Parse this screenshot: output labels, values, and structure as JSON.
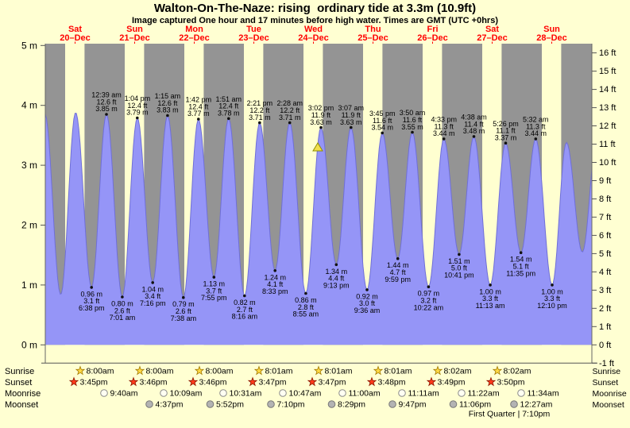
{
  "title": "Walton-On-The-Naze: rising  ordinary tide at 3.3m (10.9ft)",
  "subtitle": "Image captured One hour and 17 minutes before high water. Times are GMT (UTC +0hrs)",
  "colors": {
    "page_bg": "#ffffd2",
    "day_band": "#ffffd0",
    "night_band": "#949494",
    "tide_fill": "#9595f7",
    "tide_edge": "#6f6fd8",
    "day_label": "#ff0000",
    "text": "#000000",
    "marker_fill": "#f2df4e",
    "marker_edge": "#8f8f00",
    "sunrise_star": "#ffd945",
    "sunset_star": "#ff3a1a",
    "moonrise_fill": "#fffff2",
    "moonset_fill": "#b3b3b3"
  },
  "chart_data": {
    "type": "area",
    "title": "Walton-On-The-Naze: rising  ordinary tide at 3.3m (10.9ft)",
    "y_range_m": [
      -0.3,
      5
    ],
    "x_days": [
      {
        "name": "Sat",
        "date": "20–Dec"
      },
      {
        "name": "Sun",
        "date": "21–Dec"
      },
      {
        "name": "Mon",
        "date": "22–Dec"
      },
      {
        "name": "Tue",
        "date": "23–Dec"
      },
      {
        "name": "Wed",
        "date": "24–Dec"
      },
      {
        "name": "Thu",
        "date": "25–Dec"
      },
      {
        "name": "Fri",
        "date": "26–Dec"
      },
      {
        "name": "Sat",
        "date": "27–Dec"
      },
      {
        "name": "Sun",
        "date": "28–Dec"
      }
    ],
    "y_left_ticks": [
      "5 m",
      "4 m",
      "3 m",
      "2 m",
      "1 m",
      "0 m"
    ],
    "y_right_ticks": [
      "16 ft",
      "15 ft",
      "14 ft",
      "13 ft",
      "12 ft",
      "11 ft",
      "10 ft",
      "9 ft",
      "8 ft",
      "7 ft",
      "6 ft",
      "5 ft",
      "4 ft",
      "3 ft",
      "2 ft",
      "1 ft",
      "0 ft",
      "-1 ft"
    ],
    "high_tides": [
      {
        "time": "12:39 am",
        "ft": "12.6 ft",
        "m": "3.85 m",
        "height_m": 3.85,
        "t_hours": 24.65
      },
      {
        "time": "1:04 pm",
        "ft": "12.4 ft",
        "m": "3.79 m",
        "height_m": 3.79,
        "t_hours": 37.07
      },
      {
        "time": "1:15 am",
        "ft": "12.6 ft",
        "m": "3.83 m",
        "height_m": 3.83,
        "t_hours": 49.25
      },
      {
        "time": "1:42 pm",
        "ft": "12.4 ft",
        "m": "3.77 m",
        "height_m": 3.77,
        "t_hours": 61.7
      },
      {
        "time": "1:51 am",
        "ft": "12.4 ft",
        "m": "3.78 m",
        "height_m": 3.78,
        "t_hours": 73.85
      },
      {
        "time": "2:21 pm",
        "ft": "12.2 ft",
        "m": "3.71 m",
        "height_m": 3.71,
        "t_hours": 86.35
      },
      {
        "time": "2:28 am",
        "ft": "12.2 ft",
        "m": "3.71 m",
        "height_m": 3.71,
        "t_hours": 98.47
      },
      {
        "time": "3:02 pm",
        "ft": "11.9 ft",
        "m": "3.63 m",
        "height_m": 3.63,
        "t_hours": 111.03
      },
      {
        "time": "3:07 am",
        "ft": "11.9 ft",
        "m": "3.63 m",
        "height_m": 3.63,
        "t_hours": 123.12
      },
      {
        "time": "3:45 pm",
        "ft": "11.6 ft",
        "m": "3.54 m",
        "height_m": 3.54,
        "t_hours": 135.75
      },
      {
        "time": "3:50 am",
        "ft": "11.6 ft",
        "m": "3.55 m",
        "height_m": 3.55,
        "t_hours": 147.83
      },
      {
        "time": "4:33 pm",
        "ft": "11.3 ft",
        "m": "3.44 m",
        "height_m": 3.44,
        "t_hours": 160.55
      },
      {
        "time": "4:38 am",
        "ft": "11.4 ft",
        "m": "3.48 m",
        "height_m": 3.48,
        "t_hours": 172.63
      },
      {
        "time": "5:26 pm",
        "ft": "11.1 ft",
        "m": "3.37 m",
        "height_m": 3.37,
        "t_hours": 185.43
      },
      {
        "time": "5:32 am",
        "ft": "11.3 ft",
        "m": "3.44 m",
        "height_m": 3.44,
        "t_hours": 197.53
      }
    ],
    "low_tides": [
      {
        "m": "0.96 m",
        "ft": "3.1 ft",
        "time": "6:38 pm",
        "height_m": 0.96,
        "t_hours": 18.63
      },
      {
        "m": "0.80 m",
        "ft": "2.6 ft",
        "time": "7:01 am",
        "height_m": 0.8,
        "t_hours": 31.02
      },
      {
        "m": "1.04 m",
        "ft": "3.4 ft",
        "time": "7:16 pm",
        "height_m": 1.04,
        "t_hours": 43.27
      },
      {
        "m": "0.79 m",
        "ft": "2.6 ft",
        "time": "7:38 am",
        "height_m": 0.79,
        "t_hours": 55.63
      },
      {
        "m": "1.13 m",
        "ft": "3.7 ft",
        "time": "7:55 pm",
        "height_m": 1.13,
        "t_hours": 67.92
      },
      {
        "m": "0.82 m",
        "ft": "2.7 ft",
        "time": "8:16 am",
        "height_m": 0.82,
        "t_hours": 80.27
      },
      {
        "m": "1.24 m",
        "ft": "4.1 ft",
        "time": "8:33 pm",
        "height_m": 1.24,
        "t_hours": 92.55
      },
      {
        "m": "0.86 m",
        "ft": "2.8 ft",
        "time": "8:55 am",
        "height_m": 0.86,
        "t_hours": 104.92
      },
      {
        "m": "1.34 m",
        "ft": "4.4 ft",
        "time": "9:13 pm",
        "height_m": 1.34,
        "t_hours": 117.22
      },
      {
        "m": "0.92 m",
        "ft": "3.0 ft",
        "time": "9:36 am",
        "height_m": 0.92,
        "t_hours": 129.6
      },
      {
        "m": "1.44 m",
        "ft": "4.7 ft",
        "time": "9:59 pm",
        "height_m": 1.44,
        "t_hours": 141.98
      },
      {
        "m": "0.97 m",
        "ft": "3.2 ft",
        "time": "10:22 am",
        "height_m": 0.97,
        "t_hours": 154.37
      },
      {
        "m": "1.51 m",
        "ft": "5.0 ft",
        "time": "10:41 pm",
        "height_m": 1.51,
        "t_hours": 166.68
      },
      {
        "m": "1.00 m",
        "ft": "3.3 ft",
        "time": "11:13 am",
        "height_m": 1.0,
        "t_hours": 179.22
      },
      {
        "m": "1.54 m",
        "ft": "5.1 ft",
        "time": "11:35 pm",
        "height_m": 1.54,
        "t_hours": 191.58
      },
      {
        "m": "1.00 m",
        "ft": "3.3 ft",
        "time": "12:10 pm",
        "height_m": 1.0,
        "t_hours": 204.17
      }
    ],
    "unlabeled_extremes": [
      {
        "type": "low",
        "height_m": 0.9,
        "t_hours": -6.4
      },
      {
        "type": "high",
        "height_m": 3.86,
        "t_hours": -0.18
      },
      {
        "type": "low",
        "height_m": 0.84,
        "t_hours": 6.22
      },
      {
        "type": "high",
        "height_m": 3.88,
        "t_hours": 12.23
      },
      {
        "type": "high",
        "height_m": 3.38,
        "t_hours": 209.92
      },
      {
        "type": "low",
        "height_m": 1.55,
        "t_hours": 216.33
      },
      {
        "type": "high",
        "height_m": 3.5,
        "t_hours": 222.33
      }
    ],
    "marker": {
      "symbol": "triangle-up",
      "height_m": 3.3,
      "t_hours": 109.75
    }
  },
  "astro": {
    "rows": [
      {
        "label": "Sunrise",
        "icon": "sunrise-star-icon",
        "times": [
          "8:00am",
          "8:00am",
          "8:00am",
          "8:01am",
          "8:01am",
          "8:01am",
          "8:02am",
          "8:02am"
        ]
      },
      {
        "label": "Sunset",
        "icon": "sunset-star-icon",
        "times": [
          "3:45pm",
          "3:46pm",
          "3:46pm",
          "3:47pm",
          "3:47pm",
          "3:48pm",
          "3:49pm",
          "3:50pm"
        ]
      },
      {
        "label": "Moonrise",
        "icon": "moonrise-circle-icon",
        "times": [
          "9:40am",
          "10:09am",
          "10:31am",
          "10:47am",
          "11:00am",
          "11:11am",
          "11:22am",
          "11:34am"
        ]
      },
      {
        "label": "Moonset",
        "icon": "moonset-circle-icon",
        "times": [
          "4:37pm",
          "5:52pm",
          "7:10pm",
          "8:29pm",
          "9:47pm",
          "11:06pm",
          "12:27am"
        ]
      }
    ],
    "footnote": "First Quarter | 7:10pm"
  }
}
